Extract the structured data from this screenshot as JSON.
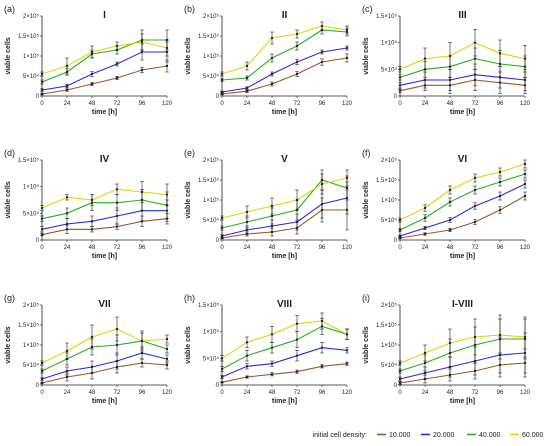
{
  "colors": {
    "s10000": "#a0522d",
    "s20000": "#2a2ae0",
    "s40000": "#22b022",
    "s60000": "#d8d800"
  },
  "legend": {
    "title": "initial cell density:",
    "entries": [
      {
        "label": "10.000",
        "color": "#a0522d"
      },
      {
        "label": "20.000",
        "color": "#2a2ae0"
      },
      {
        "label": "40.000",
        "color": "#22b022"
      },
      {
        "label": "60.000",
        "color": "#d8d800"
      }
    ]
  },
  "chart_data": [
    {
      "type": "line",
      "panel": "(a)",
      "title": "I",
      "xlabel": "time [h]",
      "ylabel": "viable cells",
      "x": [
        0,
        24,
        48,
        72,
        96,
        120
      ],
      "xticks": [
        "0",
        "24",
        "48",
        "72",
        "96",
        "120"
      ],
      "ylim": [
        0,
        200000
      ],
      "yticks": [
        0,
        50000,
        100000,
        150000,
        200000
      ],
      "yticklabels": [
        "0",
        "5×10⁴",
        "1×10⁵",
        "1.5×10⁵",
        "2×10⁵"
      ],
      "series": [
        {
          "color": "#a0522d",
          "values": [
            5000,
            15000,
            30000,
            45000,
            65000,
            75000
          ],
          "err": [
            2000,
            3000,
            4000,
            4000,
            7000,
            15000
          ]
        },
        {
          "color": "#2a2ae0",
          "values": [
            15000,
            25000,
            55000,
            80000,
            110000,
            110000
          ],
          "err": [
            3000,
            4000,
            6000,
            5000,
            20000,
            25000
          ]
        },
        {
          "color": "#22b022",
          "values": [
            35000,
            60000,
            105000,
            115000,
            140000,
            140000
          ],
          "err": [
            5000,
            8000,
            10000,
            10000,
            25000,
            25000
          ]
        },
        {
          "color": "#d8d800",
          "values": [
            55000,
            75000,
            110000,
            125000,
            135000,
            120000
          ],
          "err": [
            5000,
            20000,
            15000,
            10000,
            20000,
            20000
          ]
        }
      ]
    },
    {
      "type": "line",
      "panel": "(b)",
      "title": "II",
      "xlabel": "time [h]",
      "ylabel": "viable cells",
      "x": [
        0,
        24,
        48,
        72,
        96,
        120
      ],
      "xticks": [
        "0",
        "24",
        "48",
        "72",
        "96",
        "120"
      ],
      "ylim": [
        0,
        200000
      ],
      "yticks": [
        0,
        50000,
        100000,
        150000,
        200000
      ],
      "yticklabels": [
        "0",
        "5×10⁴",
        "1×10⁵",
        "1.5×10⁵",
        "2×10⁵"
      ],
      "series": [
        {
          "color": "#a0522d",
          "values": [
            5000,
            12000,
            30000,
            55000,
            85000,
            95000
          ],
          "err": [
            2000,
            3000,
            5000,
            6000,
            8000,
            10000
          ]
        },
        {
          "color": "#2a2ae0",
          "values": [
            10000,
            20000,
            55000,
            85000,
            110000,
            120000
          ],
          "err": [
            2000,
            3000,
            5000,
            7000,
            5000,
            5000
          ]
        },
        {
          "color": "#22b022",
          "values": [
            40000,
            45000,
            95000,
            125000,
            165000,
            160000
          ],
          "err": [
            3000,
            5000,
            10000,
            10000,
            10000,
            10000
          ]
        },
        {
          "color": "#d8d800",
          "values": [
            55000,
            75000,
            145000,
            155000,
            175000,
            165000
          ],
          "err": [
            5000,
            10000,
            15000,
            10000,
            10000,
            10000
          ]
        }
      ]
    },
    {
      "type": "line",
      "panel": "(c)",
      "title": "III",
      "xlabel": "time [h]",
      "ylabel": "viable cells",
      "x": [
        0,
        24,
        48,
        72,
        96,
        120
      ],
      "xticks": [
        "0",
        "24",
        "48",
        "72",
        "96",
        "120"
      ],
      "ylim": [
        0,
        150000
      ],
      "yticks": [
        0,
        50000,
        100000,
        150000
      ],
      "yticklabels": [
        "0",
        "5×10⁴",
        "1×10⁵",
        "1.5×10⁵"
      ],
      "series": [
        {
          "color": "#a0522d",
          "values": [
            10000,
            20000,
            20000,
            30000,
            25000,
            20000
          ],
          "err": [
            3000,
            10000,
            15000,
            20000,
            20000,
            15000
          ]
        },
        {
          "color": "#2a2ae0",
          "values": [
            20000,
            30000,
            30000,
            40000,
            35000,
            30000
          ],
          "err": [
            5000,
            15000,
            20000,
            20000,
            20000,
            20000
          ]
        },
        {
          "color": "#22b022",
          "values": [
            35000,
            50000,
            55000,
            70000,
            60000,
            55000
          ],
          "err": [
            5000,
            15000,
            20000,
            20000,
            25000,
            20000
          ]
        },
        {
          "color": "#d8d800",
          "values": [
            50000,
            70000,
            75000,
            100000,
            80000,
            70000
          ],
          "err": [
            5000,
            20000,
            25000,
            25000,
            25000,
            25000
          ]
        }
      ]
    },
    {
      "type": "line",
      "panel": "(d)",
      "title": "IV",
      "xlabel": "time [h]",
      "ylabel": "viable cells",
      "x": [
        0,
        24,
        48,
        72,
        96,
        120
      ],
      "xticks": [
        "0",
        "24",
        "48",
        "72",
        "96",
        "120"
      ],
      "ylim": [
        0,
        150000
      ],
      "yticks": [
        0,
        50000,
        100000,
        150000
      ],
      "yticklabels": [
        "0",
        "5×10⁴",
        "1×10⁵",
        "1.5×10⁵"
      ],
      "series": [
        {
          "color": "#a0522d",
          "values": [
            10000,
            20000,
            20000,
            25000,
            35000,
            40000
          ],
          "err": [
            2000,
            8000,
            5000,
            5000,
            10000,
            10000
          ]
        },
        {
          "color": "#2a2ae0",
          "values": [
            20000,
            30000,
            35000,
            45000,
            55000,
            55000
          ],
          "err": [
            5000,
            10000,
            10000,
            15000,
            20000,
            20000
          ]
        },
        {
          "color": "#22b022",
          "values": [
            40000,
            50000,
            70000,
            70000,
            75000,
            65000
          ],
          "err": [
            5000,
            10000,
            15000,
            15000,
            20000,
            25000
          ]
        },
        {
          "color": "#d8d800",
          "values": [
            60000,
            80000,
            75000,
            95000,
            90000,
            85000
          ],
          "err": [
            5000,
            5000,
            10000,
            10000,
            20000,
            20000
          ]
        }
      ]
    },
    {
      "type": "line",
      "panel": "(e)",
      "title": "V",
      "xlabel": "time [h]",
      "ylabel": "viable cells",
      "x": [
        0,
        24,
        48,
        72,
        96,
        120
      ],
      "xticks": [
        "0",
        "24",
        "48",
        "72",
        "96",
        "120"
      ],
      "ylim": [
        0,
        200000
      ],
      "yticks": [
        0,
        50000,
        100000,
        150000,
        200000
      ],
      "yticklabels": [
        "0",
        "5×10⁴",
        "1×10⁵",
        "1.5×10⁵",
        "2×10⁵"
      ],
      "series": [
        {
          "color": "#a0522d",
          "values": [
            5000,
            15000,
            20000,
            30000,
            75000,
            75000
          ],
          "err": [
            2000,
            5000,
            10000,
            15000,
            30000,
            50000
          ]
        },
        {
          "color": "#2a2ae0",
          "values": [
            10000,
            25000,
            35000,
            45000,
            90000,
            105000
          ],
          "err": [
            3000,
            10000,
            15000,
            20000,
            35000,
            40000
          ]
        },
        {
          "color": "#22b022",
          "values": [
            30000,
            45000,
            60000,
            75000,
            150000,
            130000
          ],
          "err": [
            5000,
            15000,
            20000,
            25000,
            25000,
            30000
          ]
        },
        {
          "color": "#d8d800",
          "values": [
            55000,
            70000,
            85000,
            100000,
            140000,
            155000
          ],
          "err": [
            5000,
            15000,
            20000,
            25000,
            25000,
            20000
          ]
        }
      ]
    },
    {
      "type": "line",
      "panel": "(f)",
      "title": "VI",
      "xlabel": "time [h]",
      "ylabel": "viable cells",
      "x": [
        0,
        24,
        48,
        72,
        96,
        120
      ],
      "xticks": [
        "0",
        "24",
        "48",
        "72",
        "96",
        "120"
      ],
      "ylim": [
        0,
        200000
      ],
      "yticks": [
        0,
        50000,
        100000,
        150000,
        200000
      ],
      "yticklabels": [
        "0",
        "5×10⁴",
        "1×10⁵",
        "1.5×10⁵",
        "2×10⁵"
      ],
      "series": [
        {
          "color": "#a0522d",
          "values": [
            5000,
            15000,
            25000,
            45000,
            75000,
            110000
          ],
          "err": [
            1000,
            3000,
            4000,
            6000,
            8000,
            10000
          ]
        },
        {
          "color": "#2a2ae0",
          "values": [
            10000,
            30000,
            50000,
            85000,
            110000,
            140000
          ],
          "err": [
            2000,
            4000,
            6000,
            8000,
            10000,
            10000
          ]
        },
        {
          "color": "#22b022",
          "values": [
            25000,
            55000,
            95000,
            125000,
            145000,
            165000
          ],
          "err": [
            3000,
            8000,
            10000,
            10000,
            10000,
            10000
          ]
        },
        {
          "color": "#d8d800",
          "values": [
            50000,
            80000,
            125000,
            155000,
            170000,
            190000
          ],
          "err": [
            5000,
            8000,
            10000,
            10000,
            10000,
            10000
          ]
        }
      ]
    },
    {
      "type": "line",
      "panel": "(g)",
      "title": "VII",
      "xlabel": "time [h]",
      "ylabel": "viable cells",
      "x": [
        0,
        24,
        48,
        72,
        96,
        120
      ],
      "xticks": [
        "0",
        "24",
        "48",
        "72",
        "96",
        "120"
      ],
      "ylim": [
        0,
        200000
      ],
      "yticks": [
        0,
        50000,
        100000,
        150000,
        200000
      ],
      "yticklabels": [
        "0",
        "5×10⁴",
        "1×10⁵",
        "1.5×10⁵",
        "2×10⁵"
      ],
      "series": [
        {
          "color": "#a0522d",
          "values": [
            5000,
            20000,
            30000,
            45000,
            55000,
            50000
          ],
          "err": [
            2000,
            10000,
            15000,
            15000,
            10000,
            10000
          ]
        },
        {
          "color": "#2a2ae0",
          "values": [
            15000,
            35000,
            45000,
            60000,
            80000,
            65000
          ],
          "err": [
            3000,
            10000,
            15000,
            20000,
            15000,
            10000
          ]
        },
        {
          "color": "#22b022",
          "values": [
            35000,
            65000,
            95000,
            100000,
            110000,
            90000
          ],
          "err": [
            5000,
            15000,
            20000,
            25000,
            20000,
            10000
          ]
        },
        {
          "color": "#d8d800",
          "values": [
            55000,
            85000,
            120000,
            140000,
            110000,
            115000
          ],
          "err": [
            5000,
            20000,
            30000,
            30000,
            25000,
            10000
          ]
        }
      ]
    },
    {
      "type": "line",
      "panel": "(h)",
      "title": "VIII",
      "xlabel": "time [h]",
      "ylabel": "viable cells",
      "x": [
        0,
        24,
        48,
        72,
        96,
        120
      ],
      "xticks": [
        "0",
        "24",
        "48",
        "72",
        "96",
        "120"
      ],
      "ylim": [
        0,
        150000
      ],
      "yticks": [
        0,
        50000,
        100000,
        150000
      ],
      "yticklabels": [
        "0",
        "5×10⁴",
        "1×10⁵",
        "1.5×10⁵"
      ],
      "series": [
        {
          "color": "#a0522d",
          "values": [
            5000,
            15000,
            20000,
            25000,
            35000,
            40000
          ],
          "err": [
            1000,
            2000,
            3000,
            3000,
            3000,
            3000
          ]
        },
        {
          "color": "#2a2ae0",
          "values": [
            15000,
            35000,
            40000,
            55000,
            70000,
            65000
          ],
          "err": [
            3000,
            5000,
            5000,
            10000,
            10000,
            5000
          ]
        },
        {
          "color": "#22b022",
          "values": [
            30000,
            55000,
            70000,
            85000,
            110000,
            95000
          ],
          "err": [
            5000,
            10000,
            10000,
            15000,
            15000,
            10000
          ]
        },
        {
          "color": "#d8d800",
          "values": [
            50000,
            80000,
            95000,
            115000,
            120000,
            95000
          ],
          "err": [
            5000,
            10000,
            15000,
            15000,
            15000,
            10000
          ]
        }
      ]
    },
    {
      "type": "line",
      "panel": "(i)",
      "title": "I-VIII",
      "xlabel": "time [h]",
      "ylabel": "viable cells",
      "x": [
        0,
        24,
        48,
        72,
        96,
        120
      ],
      "xticks": [
        "0",
        "24",
        "48",
        "72",
        "96",
        "120"
      ],
      "ylim": [
        0,
        200000
      ],
      "yticks": [
        0,
        50000,
        100000,
        150000,
        200000
      ],
      "yticklabels": [
        "0",
        "5×10⁴",
        "1×10⁵",
        "1.5×10⁵",
        "2×10⁵"
      ],
      "series": [
        {
          "color": "#a0522d",
          "values": [
            5000,
            15000,
            25000,
            35000,
            50000,
            55000
          ],
          "err": [
            3000,
            10000,
            15000,
            20000,
            30000,
            35000
          ]
        },
        {
          "color": "#2a2ae0",
          "values": [
            15000,
            30000,
            45000,
            60000,
            75000,
            80000
          ],
          "err": [
            5000,
            15000,
            25000,
            35000,
            45000,
            50000
          ]
        },
        {
          "color": "#22b022",
          "values": [
            35000,
            55000,
            80000,
            100000,
            115000,
            115000
          ],
          "err": [
            5000,
            20000,
            35000,
            45000,
            50000,
            50000
          ]
        },
        {
          "color": "#d8d800",
          "values": [
            55000,
            80000,
            105000,
            120000,
            125000,
            120000
          ],
          "err": [
            5000,
            20000,
            35000,
            45000,
            50000,
            50000
          ]
        }
      ]
    }
  ]
}
